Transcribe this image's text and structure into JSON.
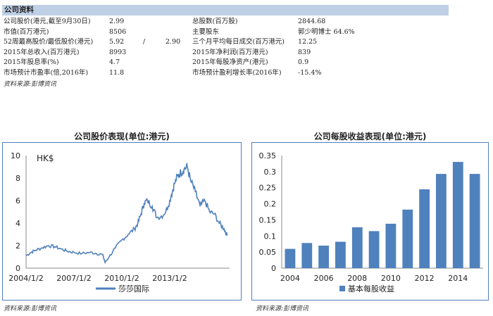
{
  "company_info": {
    "title": "公司资料",
    "rows": [
      {
        "l1": "公司股价(港元,截至9月30日)",
        "v1": "2.99",
        "v1b": "",
        "sep": "",
        "l2": "总股数(百万股)",
        "v2": "2844.68"
      },
      {
        "l1": "市值(百万港元)",
        "v1": "8506",
        "v1b": "",
        "sep": "",
        "l2": "主要股东",
        "v2": "郭少明博士 64.6%"
      },
      {
        "l1": "52周最高股价/最低股价(港元)",
        "v1": "5.92",
        "v1b": "2.90",
        "sep": "/",
        "l2": "三个月平均每日成交(百万港元)",
        "v2": "12.25"
      },
      {
        "l1": "2015年总收入(百万港元)",
        "v1": "8993",
        "v1b": "",
        "sep": "",
        "l2": "2015年净利润(百万港元)",
        "v2": "839"
      },
      {
        "l1": "2015年股息率(%)",
        "v1": "4.7",
        "v1b": "",
        "sep": "",
        "l2": "2015年每股净资产(港元)",
        "v2": "0.9"
      },
      {
        "l1": "市场预计市盈率(倍,2016年)",
        "v1": "11.8",
        "v1b": "",
        "sep": "",
        "l2": "市场预计盈利增长率(2016年)",
        "v2": "-15.4%"
      }
    ],
    "source": "资料来源:彭博资讯"
  },
  "colors": {
    "series": "#4f81bd",
    "header_bg": "#bfd0e6"
  },
  "chart_data": [
    {
      "type": "line",
      "title": "公司股价表现(单位:港元)",
      "annotation": "HK$",
      "ylim": [
        0,
        10
      ],
      "yticks": [
        0,
        2,
        4,
        6,
        8,
        10
      ],
      "xticks": [
        "2004/1/2",
        "2007/1/2",
        "2010/1/2",
        "2013/1/2"
      ],
      "source": "资料来源:彭博资讯",
      "series": [
        {
          "name": "莎莎国际",
          "x": [
            2004.0,
            2004.3,
            2004.6,
            2005.0,
            2005.4,
            2005.8,
            2006.2,
            2006.6,
            2007.0,
            2007.5,
            2008.0,
            2008.4,
            2008.8,
            2008.95,
            2009.2,
            2009.6,
            2010.0,
            2010.4,
            2010.8,
            2011.0,
            2011.2,
            2011.4,
            2011.6,
            2011.9,
            2012.2,
            2012.6,
            2012.9,
            2013.1,
            2013.3,
            2013.5,
            2013.7,
            2013.9,
            2014.1,
            2014.3,
            2014.6,
            2014.9,
            2015.2,
            2015.5,
            2015.8,
            2016.1,
            2016.4,
            2016.6
          ],
          "y": [
            1.1,
            1.4,
            1.6,
            1.8,
            2.0,
            1.9,
            1.7,
            1.5,
            1.4,
            1.3,
            1.4,
            1.3,
            1.2,
            0.5,
            1.0,
            1.8,
            2.5,
            3.0,
            3.5,
            4.0,
            4.8,
            5.8,
            6.0,
            5.5,
            4.5,
            4.7,
            5.5,
            6.5,
            7.5,
            8.2,
            8.5,
            8.8,
            9.0,
            7.8,
            6.8,
            5.5,
            6.0,
            5.0,
            4.8,
            4.0,
            3.5,
            2.9
          ]
        }
      ]
    },
    {
      "type": "bar",
      "title": "公司每股收益表现(单位:港元)",
      "categories": [
        "2004",
        "2005",
        "2006",
        "2007",
        "2008",
        "2009",
        "2010",
        "2011",
        "2012",
        "2013",
        "2014",
        "2015"
      ],
      "xtick_labels": [
        "2004",
        "2006",
        "2008",
        "2010",
        "2012",
        "2014"
      ],
      "series": [
        {
          "name": "基本每股收益",
          "values": [
            0.06,
            0.078,
            0.07,
            0.082,
            0.127,
            0.115,
            0.138,
            0.182,
            0.245,
            0.293,
            0.33,
            0.293
          ]
        }
      ],
      "ylim": [
        0,
        0.35
      ],
      "yticks": [
        "0",
        "0.05",
        "0.1",
        "0.15",
        "0.2",
        "0.25",
        "0.3",
        "0.35"
      ],
      "source": "资料来源:彭博资讯"
    }
  ]
}
